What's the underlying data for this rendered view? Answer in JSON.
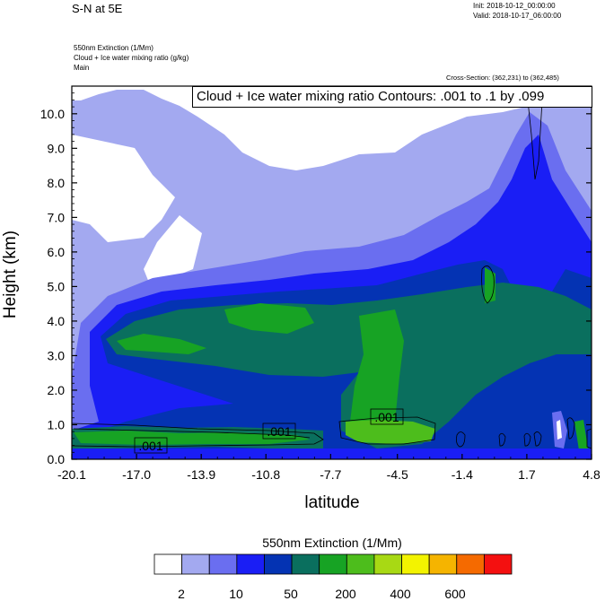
{
  "header": {
    "title": "S-N at 5E",
    "init": "Init: 2018-10-12_00:00:00",
    "valid": "Valid: 2018-10-17_06:00:00",
    "var1": "550nm Extinction   (1/Mm)",
    "var2": "Cloud + Ice water mixing ratio   (g/kg)",
    "var3": "Main",
    "cross_section": "Cross-Section: (362,231) to (362,485)",
    "contour_info": "Cloud + Ice water mixing ratio Contours: .001 to .1 by .099"
  },
  "chart_data": {
    "type": "heatmap",
    "title": "S-N at 5E",
    "xlabel": "latitude",
    "ylabel": "Height (km)",
    "x_ticks": [
      "-20.1",
      "-17.0",
      "-13.9",
      "-10.8",
      "-7.7",
      "-4.5",
      "-1.4",
      "1.7",
      "4.8"
    ],
    "y_ticks": [
      "0.0",
      "1.0",
      "2.0",
      "3.0",
      "4.0",
      "5.0",
      "6.0",
      "7.0",
      "8.0",
      "9.0",
      "10.0"
    ],
    "xlim": [
      -20.1,
      4.8
    ],
    "ylim": [
      0.0,
      10.8
    ],
    "contour_labels": [
      ".001",
      ".001",
      ".001"
    ],
    "colorbar": {
      "title": "550nm Extinction  (1/Mm)",
      "colors": [
        "#ffffff",
        "#a3a9f0",
        "#6a6ef0",
        "#1a1ef5",
        "#0433b3",
        "#0a6f5e",
        "#17a324",
        "#4dbd1c",
        "#a8d914",
        "#f3f300",
        "#f5b400",
        "#f56a00",
        "#f41010"
      ],
      "labels": [
        "2",
        "10",
        "50",
        "200",
        "400",
        "600"
      ]
    }
  }
}
